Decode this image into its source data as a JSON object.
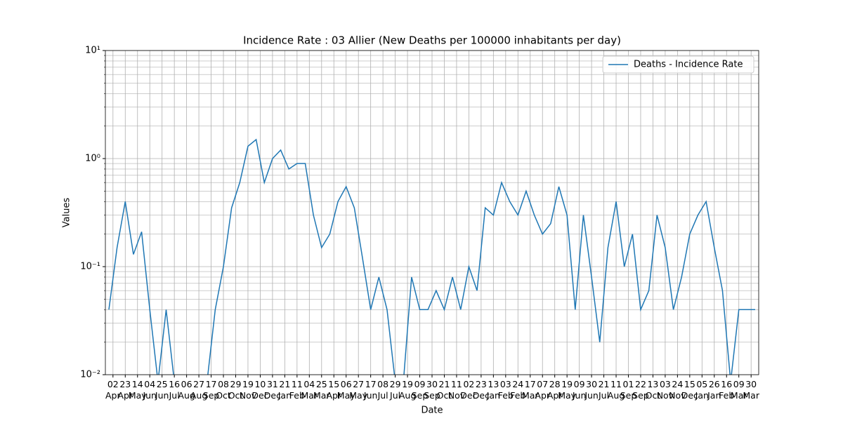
{
  "chart_data": {
    "type": "line",
    "title": "Incidence Rate : 03 Allier (New Deaths per 100000 inhabitants per day)",
    "xlabel": "Date",
    "ylabel": "Values",
    "log_y": true,
    "grid": true,
    "legend": "upper right",
    "ylim": [
      0.01,
      10
    ],
    "yticks": [
      {
        "value": 0.01,
        "label": "10⁻²"
      },
      {
        "value": 0.1,
        "label": "10⁻¹"
      },
      {
        "value": 1,
        "label": "10⁰"
      },
      {
        "value": 10,
        "label": "10¹"
      }
    ],
    "xlim": [
      -13,
      1105
    ],
    "xticks": [
      {
        "value": 0,
        "label": "02\nApr"
      },
      {
        "value": 21,
        "label": "23\nApr"
      },
      {
        "value": 42,
        "label": "14\nMay"
      },
      {
        "value": 63,
        "label": "04\nJun"
      },
      {
        "value": 84,
        "label": "25\nJun"
      },
      {
        "value": 105,
        "label": "16\nJul"
      },
      {
        "value": 126,
        "label": "06\nAug"
      },
      {
        "value": 147,
        "label": "27\nAug"
      },
      {
        "value": 168,
        "label": "17\nSep"
      },
      {
        "value": 189,
        "label": "08\nOct"
      },
      {
        "value": 210,
        "label": "29\nOct"
      },
      {
        "value": 231,
        "label": "19\nNov"
      },
      {
        "value": 252,
        "label": "10\nDec"
      },
      {
        "value": 273,
        "label": "31\nDec"
      },
      {
        "value": 294,
        "label": "21\nJan"
      },
      {
        "value": 315,
        "label": "11\nFeb"
      },
      {
        "value": 336,
        "label": "04\nMar"
      },
      {
        "value": 357,
        "label": "25\nMar"
      },
      {
        "value": 378,
        "label": "15\nApr"
      },
      {
        "value": 399,
        "label": "06\nMay"
      },
      {
        "value": 420,
        "label": "27\nMay"
      },
      {
        "value": 441,
        "label": "17\nJun"
      },
      {
        "value": 462,
        "label": "08\nJul"
      },
      {
        "value": 483,
        "label": "29\nJul"
      },
      {
        "value": 504,
        "label": "19\nAug"
      },
      {
        "value": 525,
        "label": "09\nSep"
      },
      {
        "value": 546,
        "label": "30\nSep"
      },
      {
        "value": 567,
        "label": "21\nOct"
      },
      {
        "value": 588,
        "label": "11\nNov"
      },
      {
        "value": 609,
        "label": "02\nDec"
      },
      {
        "value": 630,
        "label": "23\nDec"
      },
      {
        "value": 651,
        "label": "13\nJan"
      },
      {
        "value": 672,
        "label": "03\nFeb"
      },
      {
        "value": 693,
        "label": "24\nFeb"
      },
      {
        "value": 714,
        "label": "17\nMar"
      },
      {
        "value": 735,
        "label": "07\nApr"
      },
      {
        "value": 756,
        "label": "28\nApr"
      },
      {
        "value": 777,
        "label": "19\nMay"
      },
      {
        "value": 798,
        "label": "09\nJun"
      },
      {
        "value": 819,
        "label": "30\nJun"
      },
      {
        "value": 840,
        "label": "21\nJul"
      },
      {
        "value": 861,
        "label": "11\nAug"
      },
      {
        "value": 882,
        "label": "01\nSep"
      },
      {
        "value": 903,
        "label": "22\nSep"
      },
      {
        "value": 924,
        "label": "13\nOct"
      },
      {
        "value": 945,
        "label": "03\nNov"
      },
      {
        "value": 966,
        "label": "24\nNov"
      },
      {
        "value": 987,
        "label": "15\nDec"
      },
      {
        "value": 1008,
        "label": "05\nJan"
      },
      {
        "value": 1029,
        "label": "26\nJan"
      },
      {
        "value": 1050,
        "label": "16\nFeb"
      },
      {
        "value": 1071,
        "label": "09\nMar"
      },
      {
        "value": 1092,
        "label": "30\nMar"
      }
    ],
    "x": [
      -7,
      7,
      21,
      35,
      49,
      63,
      77,
      91,
      105,
      119,
      133,
      147,
      161,
      175,
      189,
      203,
      217,
      231,
      245,
      259,
      273,
      287,
      301,
      315,
      329,
      343,
      357,
      371,
      385,
      399,
      413,
      427,
      441,
      455,
      469,
      483,
      497,
      511,
      525,
      539,
      553,
      567,
      581,
      595,
      609,
      623,
      637,
      651,
      665,
      679,
      693,
      707,
      721,
      735,
      749,
      763,
      777,
      791,
      805,
      819,
      833,
      847,
      861,
      875,
      889,
      903,
      917,
      931,
      945,
      959,
      973,
      987,
      1001,
      1015,
      1029,
      1043,
      1057,
      1071,
      1085,
      1099
    ],
    "series": [
      {
        "name": "Deaths - Incidence Rate",
        "color": "#1f77b4",
        "values": [
          0.04,
          0.15,
          0.4,
          0.13,
          0.21,
          0.04,
          0,
          0.04,
          0,
          0,
          0,
          0,
          0,
          0.04,
          0.1,
          0.35,
          0.6,
          1.3,
          1.5,
          0.6,
          1.0,
          1.2,
          0.8,
          0.9,
          0.9,
          0.3,
          0.15,
          0.2,
          0.4,
          0.55,
          0.35,
          0.12,
          0.04,
          0.08,
          0.04,
          0,
          0,
          0.08,
          0.04,
          0.04,
          0.06,
          0.04,
          0.08,
          0.04,
          0.1,
          0.06,
          0.35,
          0.3,
          0.6,
          0.4,
          0.3,
          0.5,
          0.3,
          0.2,
          0.25,
          0.55,
          0.3,
          0.04,
          0.3,
          0.08,
          0.02,
          0.15,
          0.4,
          0.1,
          0.2,
          0.04,
          0.06,
          0.3,
          0.15,
          0.04,
          0.08,
          0.2,
          0.3,
          0.4,
          0.15,
          0.06,
          0,
          0.04,
          0.04,
          0.04
        ]
      }
    ]
  }
}
